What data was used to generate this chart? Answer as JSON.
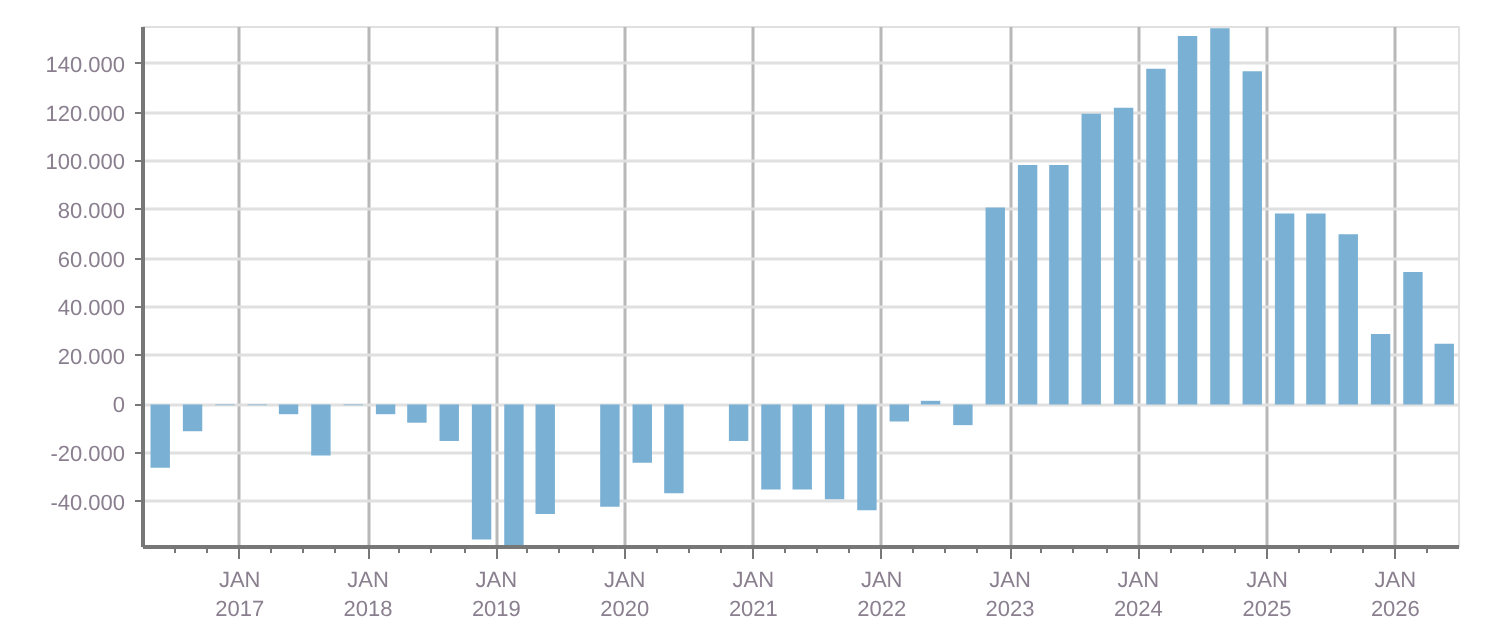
{
  "chart_data": {
    "type": "bar",
    "x": [
      "2016-05-20",
      "2016-08-20",
      "2016-11-20",
      "2017-02-20",
      "2017-05-20",
      "2017-08-20",
      "2017-11-20",
      "2018-02-20",
      "2018-05-20",
      "2018-08-20",
      "2018-11-20",
      "2019-02-20",
      "2019-05-20",
      "2019-08-20",
      "2019-11-20",
      "2020-02-20",
      "2020-05-20",
      "2020-08-20",
      "2020-11-20",
      "2021-02-20",
      "2021-05-20",
      "2021-08-20",
      "2021-11-20",
      "2022-02-20",
      "2022-05-20",
      "2022-08-20",
      "2022-11-20",
      "2023-02-20",
      "2023-05-20",
      "2023-08-20",
      "2023-11-20",
      "2024-02-20",
      "2024-05-20",
      "2024-08-20",
      "2024-11-20",
      "2025-02-20",
      "2025-05-20",
      "2025-08-20",
      "2025-11-20",
      "2026-02-20",
      "2026-05-20"
    ],
    "values": [
      -26000,
      -11000,
      -300,
      -300,
      -4000,
      -21000,
      -300,
      -4000,
      -7500,
      -15000,
      -55500,
      -58600,
      -45000,
      null,
      -42000,
      -24000,
      -36500,
      null,
      -15000,
      -35000,
      -35000,
      -39000,
      -43500,
      -7000,
      1500,
      -8500,
      81000,
      98500,
      98500,
      119500,
      122000,
      138000,
      151500,
      154700,
      137000,
      78500,
      78500,
      70000,
      29000,
      54500,
      25000
    ],
    "color": "#7ab0d4",
    "xlim": [
      "2016-04-01",
      "2026-07-01"
    ],
    "xticks": [
      {
        "value": "2016-07-01",
        "label": null
      },
      {
        "value": "2016-10-01",
        "label": null
      },
      {
        "value": "2017-01-01",
        "label": "JAN\n2017"
      },
      {
        "value": "2017-04-01",
        "label": null
      },
      {
        "value": "2017-07-01",
        "label": null
      },
      {
        "value": "2017-10-01",
        "label": null
      },
      {
        "value": "2018-01-01",
        "label": "JAN\n2018"
      },
      {
        "value": "2018-04-01",
        "label": null
      },
      {
        "value": "2018-07-01",
        "label": null
      },
      {
        "value": "2018-10-01",
        "label": null
      },
      {
        "value": "2019-01-01",
        "label": "JAN\n2019"
      },
      {
        "value": "2019-04-01",
        "label": null
      },
      {
        "value": "2019-07-01",
        "label": null
      },
      {
        "value": "2019-10-01",
        "label": null
      },
      {
        "value": "2020-01-01",
        "label": "JAN\n2020"
      },
      {
        "value": "2020-04-01",
        "label": null
      },
      {
        "value": "2020-07-01",
        "label": null
      },
      {
        "value": "2020-10-01",
        "label": null
      },
      {
        "value": "2021-01-01",
        "label": "JAN\n2021"
      },
      {
        "value": "2021-04-01",
        "label": null
      },
      {
        "value": "2021-07-01",
        "label": null
      },
      {
        "value": "2021-10-01",
        "label": null
      },
      {
        "value": "2022-01-01",
        "label": "JAN\n2022"
      },
      {
        "value": "2022-04-01",
        "label": null
      },
      {
        "value": "2022-07-01",
        "label": null
      },
      {
        "value": "2022-10-01",
        "label": null
      },
      {
        "value": "2023-01-01",
        "label": "JAN\n2023"
      },
      {
        "value": "2023-04-01",
        "label": null
      },
      {
        "value": "2023-07-01",
        "label": null
      },
      {
        "value": "2023-10-01",
        "label": null
      },
      {
        "value": "2024-01-01",
        "label": "JAN\n2024"
      },
      {
        "value": "2024-04-01",
        "label": null
      },
      {
        "value": "2024-07-01",
        "label": null
      },
      {
        "value": "2024-10-01",
        "label": null
      },
      {
        "value": "2025-01-01",
        "label": "JAN\n2025"
      },
      {
        "value": "2025-04-01",
        "label": null
      },
      {
        "value": "2025-07-01",
        "label": null
      },
      {
        "value": "2025-10-01",
        "label": null
      },
      {
        "value": "2026-01-01",
        "label": "JAN\n2026"
      },
      {
        "value": "2026-04-01",
        "label": null
      }
    ],
    "ylim": [
      -58600,
      155200
    ],
    "yticks": [
      {
        "value": -40000,
        "label": "-40.000"
      },
      {
        "value": -20000,
        "label": "-20.000"
      },
      0,
      {
        "value": 20000,
        "label": "20.000"
      },
      {
        "value": 40000,
        "label": "40.000"
      },
      {
        "value": 60000,
        "label": "60.000"
      },
      {
        "value": 80000,
        "label": "80.000"
      },
      {
        "value": 100000,
        "label": "100.000"
      },
      {
        "value": 120000,
        "label": "120.000"
      },
      {
        "value": 140000,
        "label": "140.000"
      }
    ],
    "grid": true
  }
}
